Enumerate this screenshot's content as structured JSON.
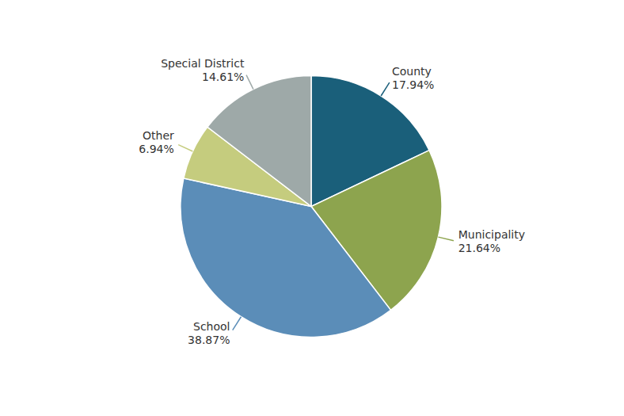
{
  "chart_data": {
    "type": "pie",
    "categories": [
      "County",
      "Municipality",
      "School",
      "Other",
      "Special District"
    ],
    "values": [
      17.94,
      21.64,
      38.87,
      6.94,
      14.61
    ],
    "value_labels": [
      "17.94%",
      "21.64%",
      "38.87%",
      "6.94%",
      "14.61%"
    ],
    "colors": [
      "#1a5f7a",
      "#8da44e",
      "#5b8db8",
      "#c5cc7e",
      "#9ea9a8"
    ]
  }
}
